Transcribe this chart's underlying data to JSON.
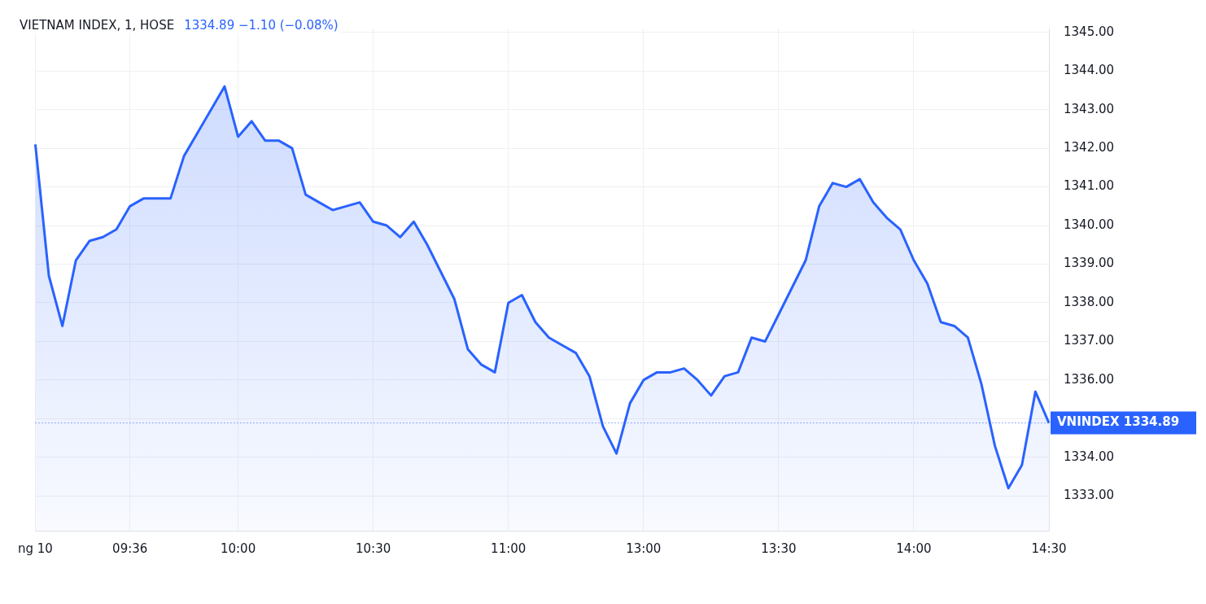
{
  "chart_data": {
    "type": "area",
    "title": "VIETNAM INDEX, 1, HOSE",
    "subtitle": "1334.89 −1.10 (−0.08%)",
    "categories": [
      "ng 10",
      null,
      null,
      null,
      null,
      null,
      null,
      "09:36",
      null,
      null,
      null,
      null,
      null,
      null,
      null,
      "10:00",
      null,
      null,
      null,
      null,
      null,
      null,
      null,
      null,
      null,
      "10:30",
      null,
      null,
      null,
      null,
      null,
      null,
      null,
      null,
      null,
      "11:00",
      null,
      null,
      null,
      null,
      null,
      null,
      null,
      null,
      null,
      "13:00",
      null,
      null,
      null,
      null,
      null,
      null,
      null,
      null,
      null,
      "13:30",
      null,
      null,
      null,
      null,
      null,
      null,
      null,
      null,
      null,
      "14:00",
      null,
      null,
      null,
      null,
      null,
      null,
      null,
      null,
      null,
      "14:30"
    ],
    "series": [
      {
        "color": "#2962ff",
        "values": [
          1342.1,
          1338.7,
          1337.4,
          1339.1,
          1339.6,
          1339.7,
          1339.9,
          1340.5,
          1340.7,
          1340.7,
          1340.7,
          1341.8,
          1342.4,
          1343.0,
          1343.6,
          1342.3,
          1342.7,
          1342.2,
          1342.2,
          1342.0,
          1340.8,
          1340.6,
          1340.4,
          1340.5,
          1340.6,
          1340.1,
          1340.0,
          1339.7,
          1340.1,
          1339.5,
          1338.8,
          1338.1,
          1336.8,
          1336.4,
          1336.2,
          1338.0,
          1338.2,
          1337.5,
          1337.1,
          1336.9,
          1336.7,
          1336.1,
          1334.8,
          1334.1,
          1335.4,
          1336.0,
          1336.2,
          1336.2,
          1336.3,
          1336.0,
          1335.6,
          1336.1,
          1336.2,
          1337.1,
          1337.0,
          1337.7,
          1338.4,
          1339.1,
          1340.5,
          1341.1,
          1341.0,
          1341.2,
          1340.6,
          1340.2,
          1339.9,
          1339.1,
          1338.5,
          1337.5,
          1337.4,
          1337.1,
          1335.9,
          1334.3,
          1333.2,
          1333.8,
          1335.7,
          1334.89
        ]
      }
    ],
    "ylim": [
      1332.1,
      1345.1
    ],
    "yticks": [
      {
        "value": 1333,
        "label": "1333.00"
      },
      {
        "value": 1334,
        "label": "1334.00"
      },
      {
        "value": 1335,
        "label": null
      },
      {
        "value": 1336,
        "label": "1336.00"
      },
      {
        "value": 1337,
        "label": "1337.00"
      },
      {
        "value": 1338,
        "label": "1338.00"
      },
      {
        "value": 1339,
        "label": "1339.00"
      },
      {
        "value": 1340,
        "label": "1340.00"
      },
      {
        "value": 1341,
        "label": "1341.00"
      },
      {
        "value": 1342,
        "label": "1342.00"
      },
      {
        "value": 1343,
        "label": "1343.00"
      },
      {
        "value": 1344,
        "label": "1344.00"
      },
      {
        "value": 1345,
        "label": "1345.00"
      }
    ],
    "ref_lines": [
      {
        "axis": "y",
        "value": 1334.89,
        "label": "VNINDEX 1334.89",
        "color": "#2962ff",
        "line_style": "dotted"
      }
    ],
    "grid": true,
    "legend": false,
    "marker": "none",
    "line_style": "solid"
  }
}
